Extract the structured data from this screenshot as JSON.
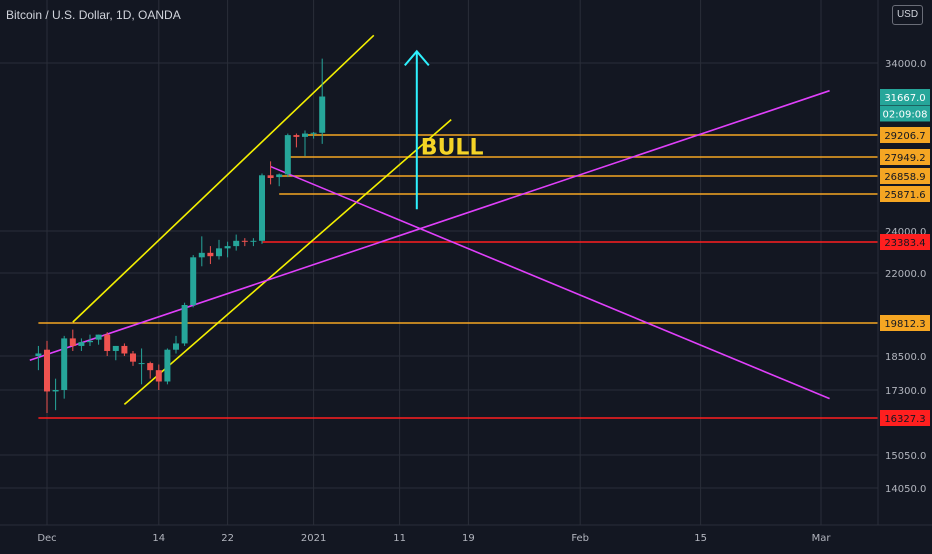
{
  "header": {
    "title": "Bitcoin / U.S. Dollar, 1D, OANDA"
  },
  "currency_button": "USD",
  "colors": {
    "background": "#131722",
    "grid": "#2a2e39",
    "up": "#26a69a",
    "down": "#ef5350",
    "orange": "#f5a623",
    "red": "#ff1f1f",
    "magenta": "#e040fb",
    "yellow": "#f4f000",
    "cyan": "#2ef2ff",
    "bull_text": "#f5d427"
  },
  "chart_data": {
    "type": "candlestick",
    "title": "Bitcoin / U.S. Dollar, 1D, OANDA",
    "y_axis": {
      "currency": "USD",
      "tick_labels": [
        "34000.0",
        "24000.0",
        "22000.0",
        "18500.0",
        "17300.0",
        "15050.0",
        "14050.0"
      ]
    },
    "x_axis": {
      "tick_labels": [
        {
          "date": "2020-12-01",
          "label": "Dec"
        },
        {
          "date": "2020-12-14",
          "label": "14"
        },
        {
          "date": "2020-12-22",
          "label": "22"
        },
        {
          "date": "2021-01-01",
          "label": "2021"
        },
        {
          "date": "2021-01-11",
          "label": "11"
        },
        {
          "date": "2021-01-19",
          "label": "19"
        },
        {
          "date": "2021-02-01",
          "label": "Feb"
        },
        {
          "date": "2021-02-15",
          "label": "15"
        },
        {
          "date": "2021-03-01",
          "label": "Mar"
        }
      ]
    },
    "price_badges": [
      {
        "label": "31667.0",
        "value": 31667.0,
        "color": "#26a69a",
        "kind": "last"
      },
      {
        "label": "02:09:08",
        "value": 30600,
        "color": "#26a69a",
        "kind": "timer"
      },
      {
        "label": "29206.7",
        "value": 29206.7,
        "color": "#f5a623",
        "kind": "level"
      },
      {
        "label": "27949.2",
        "value": 27949.2,
        "color": "#f5a623",
        "kind": "level"
      },
      {
        "label": "26858.9",
        "value": 26858.9,
        "color": "#f5a623",
        "kind": "level"
      },
      {
        "label": "25871.6",
        "value": 25871.6,
        "color": "#f5a623",
        "kind": "level"
      },
      {
        "label": "23383.4",
        "value": 23383.4,
        "color": "#ff1f1f",
        "kind": "level"
      },
      {
        "label": "19812.3",
        "value": 19812.3,
        "color": "#f5a623",
        "kind": "level"
      },
      {
        "label": "16327.3",
        "value": 16327.3,
        "color": "#ff1f1f",
        "kind": "level"
      }
    ],
    "horizontal_levels": [
      {
        "value": 29206.7,
        "from": "2020-12-31",
        "color": "#f5a623"
      },
      {
        "value": 27949.2,
        "from": "2020-12-29",
        "color": "#f5a623"
      },
      {
        "value": 26858.9,
        "from": "2020-12-28",
        "color": "#f5a623"
      },
      {
        "value": 25871.6,
        "from": "2020-12-28",
        "color": "#f5a623"
      },
      {
        "value": 23383.4,
        "from": "2020-12-26",
        "color": "#ff1f1f"
      },
      {
        "value": 19812.3,
        "from": "2020-11-30",
        "color": "#f5a623"
      },
      {
        "value": 16327.3,
        "from": "2020-11-30",
        "color": "#ff1f1f"
      }
    ],
    "trend_lines": [
      {
        "name": "channel-upper",
        "color": "#f4f000",
        "points": [
          [
            "2020-12-04",
            19850
          ],
          [
            "2021-01-08",
            35900
          ]
        ]
      },
      {
        "name": "channel-lower",
        "color": "#f4f000",
        "points": [
          [
            "2020-12-10",
            16800
          ],
          [
            "2021-01-17",
            30200
          ]
        ]
      },
      {
        "name": "rising-support",
        "color": "#e040fb",
        "points": [
          [
            "2020-11-29",
            18350
          ],
          [
            "2021-03-02",
            32100
          ]
        ]
      },
      {
        "name": "falling-resistance",
        "color": "#e040fb",
        "points": [
          [
            "2020-12-27",
            27400
          ],
          [
            "2021-03-02",
            17000
          ]
        ]
      }
    ],
    "arrow": {
      "color": "#2ef2ff",
      "from": [
        "2021-01-13",
        25100
      ],
      "to": [
        "2021-01-13",
        34800
      ]
    },
    "annotations": [
      {
        "text": "BULL",
        "at": [
          "2021-01-13",
          29000
        ],
        "color": "#f5d427"
      }
    ],
    "candles": [
      {
        "date": "2020-11-30",
        "o": 18500,
        "h": 18900,
        "l": 18000,
        "c": 18600
      },
      {
        "date": "2020-12-01",
        "o": 18750,
        "h": 19100,
        "l": 16500,
        "c": 17250
      },
      {
        "date": "2020-12-02",
        "o": 17250,
        "h": 17700,
        "l": 16600,
        "c": 17300
      },
      {
        "date": "2020-12-03",
        "o": 17300,
        "h": 19300,
        "l": 17000,
        "c": 19200
      },
      {
        "date": "2020-12-04",
        "o": 19200,
        "h": 19550,
        "l": 18700,
        "c": 18900
      },
      {
        "date": "2020-12-05",
        "o": 18900,
        "h": 19200,
        "l": 18700,
        "c": 19050
      },
      {
        "date": "2020-12-06",
        "o": 19050,
        "h": 19350,
        "l": 18900,
        "c": 19100
      },
      {
        "date": "2020-12-07",
        "o": 19150,
        "h": 19350,
        "l": 18950,
        "c": 19350
      },
      {
        "date": "2020-12-08",
        "o": 19350,
        "h": 19450,
        "l": 18500,
        "c": 18700
      },
      {
        "date": "2020-12-09",
        "o": 18700,
        "h": 18900,
        "l": 18350,
        "c": 18900
      },
      {
        "date": "2020-12-10",
        "o": 18900,
        "h": 19000,
        "l": 18500,
        "c": 18600
      },
      {
        "date": "2020-12-11",
        "o": 18600,
        "h": 18700,
        "l": 18150,
        "c": 18300
      },
      {
        "date": "2020-12-12",
        "o": 18250,
        "h": 18800,
        "l": 17500,
        "c": 18250
      },
      {
        "date": "2020-12-13",
        "o": 18250,
        "h": 18300,
        "l": 17700,
        "c": 18000
      },
      {
        "date": "2020-12-14",
        "o": 18000,
        "h": 18200,
        "l": 17300,
        "c": 17600
      },
      {
        "date": "2020-12-15",
        "o": 17600,
        "h": 18800,
        "l": 17500,
        "c": 18750
      },
      {
        "date": "2020-12-16",
        "o": 18750,
        "h": 19300,
        "l": 18600,
        "c": 19000
      },
      {
        "date": "2020-12-17",
        "o": 19000,
        "h": 20700,
        "l": 18900,
        "c": 20600
      },
      {
        "date": "2020-12-18",
        "o": 20600,
        "h": 22800,
        "l": 20500,
        "c": 22700
      },
      {
        "date": "2020-12-19",
        "o": 22700,
        "h": 23700,
        "l": 22300,
        "c": 22900
      },
      {
        "date": "2020-12-20",
        "o": 22900,
        "h": 23200,
        "l": 22400,
        "c": 22750
      },
      {
        "date": "2020-12-21",
        "o": 22750,
        "h": 23500,
        "l": 22600,
        "c": 23100
      },
      {
        "date": "2020-12-22",
        "o": 23100,
        "h": 23400,
        "l": 22700,
        "c": 23200
      },
      {
        "date": "2020-12-23",
        "o": 23200,
        "h": 23800,
        "l": 23000,
        "c": 23450
      },
      {
        "date": "2020-12-24",
        "o": 23450,
        "h": 23600,
        "l": 23200,
        "c": 23400
      },
      {
        "date": "2020-12-25",
        "o": 23400,
        "h": 23600,
        "l": 23200,
        "c": 23450
      },
      {
        "date": "2020-12-26",
        "o": 23450,
        "h": 27000,
        "l": 23300,
        "c": 26900
      },
      {
        "date": "2020-12-27",
        "o": 26900,
        "h": 27700,
        "l": 26400,
        "c": 26750
      },
      {
        "date": "2020-12-28",
        "o": 26800,
        "h": 27000,
        "l": 26300,
        "c": 26950
      },
      {
        "date": "2020-12-29",
        "o": 26950,
        "h": 29300,
        "l": 26800,
        "c": 29200
      },
      {
        "date": "2020-12-30",
        "o": 29200,
        "h": 29300,
        "l": 28500,
        "c": 29100
      },
      {
        "date": "2020-12-31",
        "o": 29100,
        "h": 29500,
        "l": 28000,
        "c": 29300
      },
      {
        "date": "2021-01-01",
        "o": 29300,
        "h": 29400,
        "l": 29000,
        "c": 29350
      },
      {
        "date": "2021-01-02",
        "o": 29350,
        "h": 34300,
        "l": 28700,
        "c": 31700
      }
    ]
  }
}
